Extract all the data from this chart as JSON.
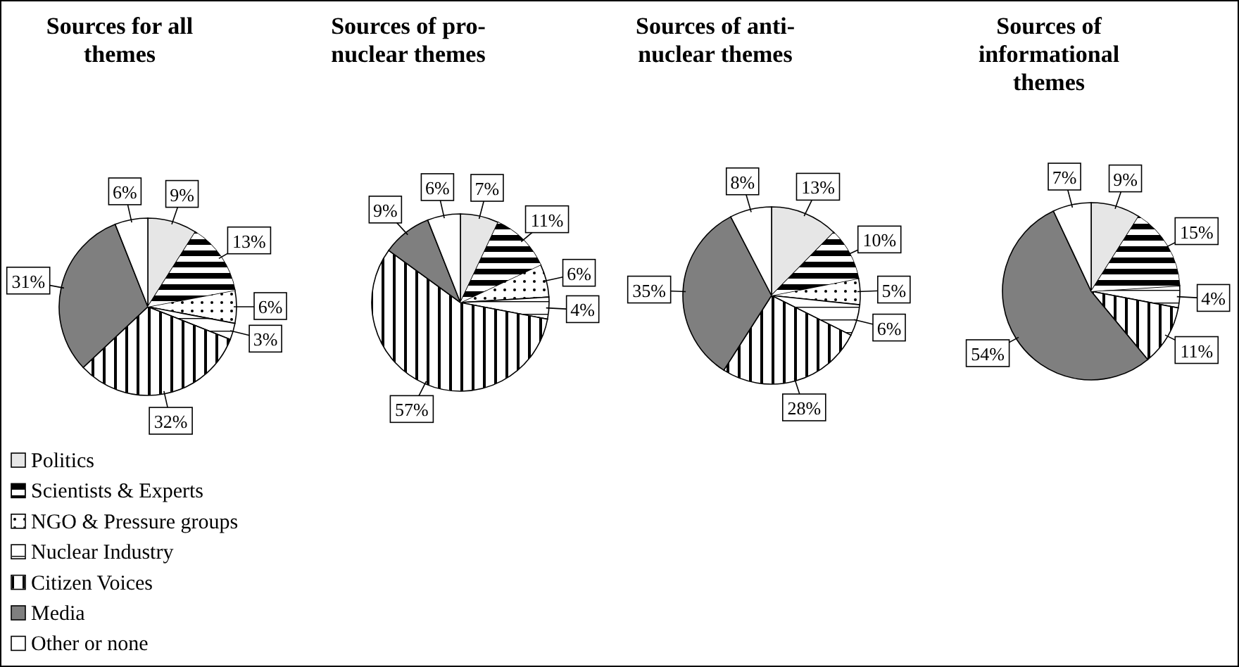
{
  "chart_data": [
    {
      "type": "pie",
      "title": "Sources for all themes",
      "categories": [
        "Politics",
        "Scientists & Experts",
        "NGO & Pressure groups",
        "Nuclear Industry",
        "Citizen Voices",
        "Media",
        "Other or none"
      ],
      "values": [
        9,
        13,
        6,
        3,
        32,
        31,
        6
      ],
      "value_labels": [
        "9%",
        "13%",
        "6%",
        "3%",
        "32%",
        "31%",
        "6%"
      ],
      "colors": [
        "#e6e6e6",
        "#000000",
        "#ffffff",
        "#ffffff",
        "#ffffff",
        "#7f7f7f",
        "#ffffff"
      ],
      "legend": "bottom"
    },
    {
      "type": "pie",
      "title": "Sources of pro-nuclear themes",
      "categories": [
        null,
        null,
        null,
        null,
        null,
        null,
        null
      ],
      "values": [
        7,
        11,
        6,
        4,
        57,
        9,
        6
      ],
      "value_labels": [
        "7%",
        "11%",
        "6%",
        "4%",
        "57%",
        "9%",
        "6%"
      ],
      "colors": [
        "#e6e6e6",
        "#000000",
        "#ffffff",
        "#ffffff",
        "#ffffff",
        "#7f7f7f",
        "#ffffff"
      ]
    },
    {
      "type": "pie",
      "title": "Sources of anti-nuclear themes",
      "categories": [
        null,
        null,
        null,
        null,
        null,
        null,
        null
      ],
      "values": [
        13,
        10,
        5,
        6,
        28,
        35,
        8
      ],
      "value_labels": [
        "13%",
        "10%",
        "5%",
        "6%",
        "28%",
        "35%",
        "8%"
      ],
      "colors": [
        "#e6e6e6",
        "#000000",
        "#ffffff",
        "#ffffff",
        "#ffffff",
        "#7f7f7f",
        "#ffffff"
      ]
    },
    {
      "type": "pie",
      "title": "Sources of informational themes",
      "categories": [
        null,
        null,
        null,
        null,
        null,
        null,
        null
      ],
      "values": [
        9,
        15,
        null,
        4,
        11,
        54,
        7
      ],
      "value_labels": [
        "9%",
        "15%",
        null,
        "4%",
        "11%",
        "54%",
        "7%"
      ],
      "colors": [
        "#e6e6e6",
        "#000000",
        null,
        "#ffffff",
        "#ffffff",
        "#7f7f7f",
        "#ffffff"
      ]
    }
  ]
}
